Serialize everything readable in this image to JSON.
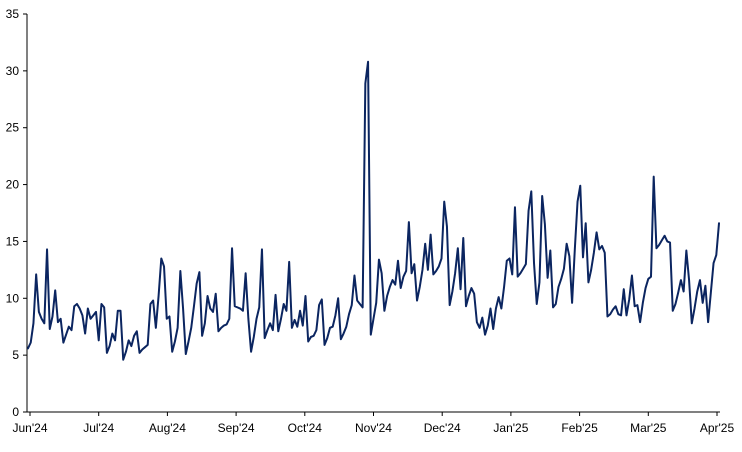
{
  "chart_data": {
    "type": "line",
    "title": "",
    "xlabel": "",
    "ylabel": "",
    "ylim": [
      0,
      35
    ],
    "yticks": [
      0,
      5,
      10,
      15,
      20,
      25,
      30,
      35
    ],
    "x_tick_labels": [
      "Jun'24",
      "Jul'24",
      "Aug'24",
      "Sep'24",
      "Oct'24",
      "Nov'24",
      "Dec'24",
      "Jan'25",
      "Feb'25",
      "Mar'25",
      "Apr'25"
    ],
    "grid": false,
    "legend": "none",
    "line_color": "#0b2560",
    "series": [
      {
        "values": [
          5.6,
          6.1,
          7.8,
          12.1,
          8.8,
          8.2,
          7.8,
          14.3,
          7.3,
          8.4,
          10.7,
          7.9,
          8.2,
          6.1,
          6.8,
          7.5,
          7.2,
          9.3,
          9.5,
          9.1,
          8.5,
          6.9,
          9.1,
          8.2,
          8.5,
          8.8,
          6.3,
          9.5,
          9.2,
          5.2,
          5.8,
          6.9,
          6.3,
          8.9,
          8.9,
          4.6,
          5.3,
          6.3,
          5.8,
          6.7,
          7.1,
          5.2,
          5.5,
          5.7,
          5.9,
          9.5,
          9.8,
          7.4,
          10.2,
          13.5,
          12.8,
          8.2,
          8.4,
          5.3,
          6.2,
          7.4,
          12.4,
          9.1,
          5.1,
          6.2,
          7.4,
          9.3,
          11.3,
          12.3,
          6.7,
          7.8,
          10.2,
          9.1,
          8.8,
          10.4,
          7.1,
          7.4,
          7.6,
          7.7,
          8.2,
          14.4,
          9.3,
          9.2,
          9.1,
          8.9,
          12.2,
          8.2,
          5.3,
          6.6,
          8.2,
          9.2,
          14.3,
          6.5,
          7.2,
          7.8,
          7.2,
          10.3,
          7.1,
          8.2,
          9.5,
          8.9,
          13.2,
          7.4,
          8.1,
          7.5,
          8.9,
          7.6,
          10.2,
          6.2,
          6.6,
          6.7,
          7.2,
          9.4,
          9.9,
          5.9,
          6.5,
          7.4,
          7.5,
          8.5,
          10.0,
          6.4,
          6.9,
          7.5,
          8.6,
          9.4,
          12.0,
          9.8,
          9.5,
          9.2,
          28.9,
          30.8,
          6.8,
          8.2,
          9.6,
          13.4,
          12.2,
          8.9,
          10.2,
          11.0,
          11.6,
          11.2,
          13.3,
          10.9,
          11.9,
          12.4,
          16.7,
          12.2,
          13.0,
          9.8,
          11.0,
          12.5,
          14.8,
          12.5,
          15.6,
          12.1,
          12.4,
          12.8,
          13.5,
          18.5,
          16.3,
          9.4,
          10.6,
          12.2,
          14.4,
          10.8,
          15.3,
          9.3,
          10.2,
          10.9,
          10.4,
          7.9,
          7.4,
          8.3,
          6.8,
          7.6,
          9.1,
          7.3,
          9.1,
          10.1,
          9.1,
          11.0,
          13.3,
          13.5,
          12.1,
          18.0,
          11.9,
          12.2,
          12.6,
          13.0,
          17.7,
          19.4,
          13.1,
          9.5,
          11.4,
          19.0,
          16.5,
          11.8,
          14.2,
          9.2,
          9.5,
          11.0,
          11.7,
          12.6,
          14.8,
          13.7,
          9.6,
          14.3,
          18.5,
          19.9,
          13.6,
          16.6,
          11.4,
          12.5,
          14.0,
          15.8,
          14.3,
          14.6,
          14.0,
          8.4,
          8.6,
          9.0,
          9.3,
          8.6,
          8.5,
          10.8,
          8.5,
          9.9,
          12.0,
          9.3,
          9.4,
          7.9,
          9.6,
          10.9,
          11.7,
          11.9,
          20.7,
          14.4,
          14.7,
          15.1,
          15.5,
          15.0,
          14.9,
          8.9,
          9.5,
          10.5,
          11.6,
          10.6,
          14.2,
          11.6,
          7.8,
          9.1,
          10.6,
          11.6,
          9.6,
          11.1,
          7.9,
          10.5,
          13.1,
          13.8,
          16.6
        ]
      }
    ]
  }
}
